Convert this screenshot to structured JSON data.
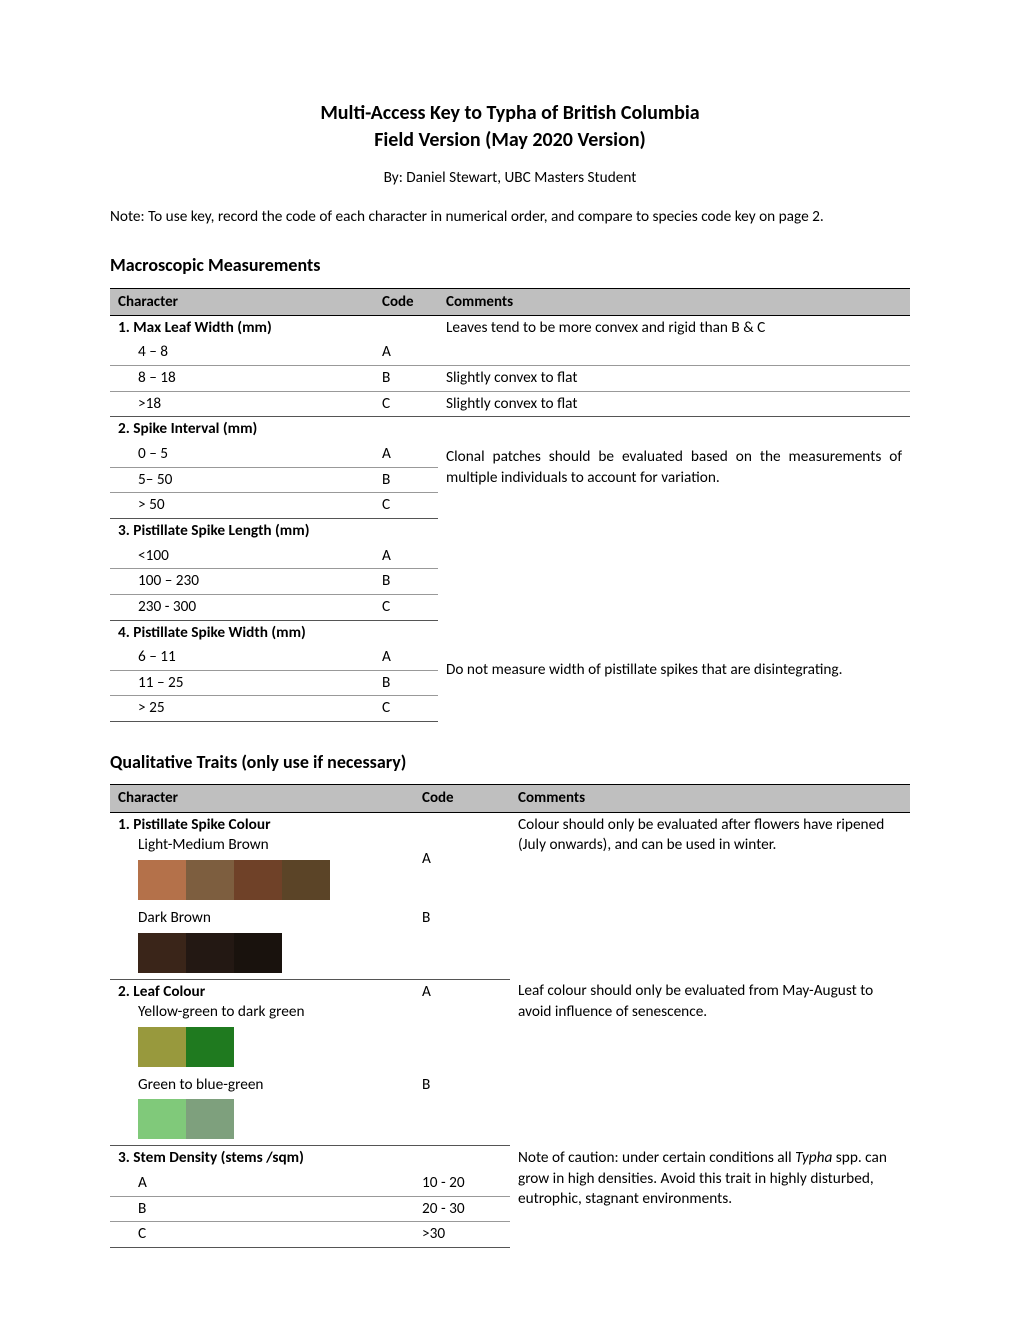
{
  "title1": "Multi-Access Key to Typha of British Columbia",
  "title2": "Field Version (May 2020 Version)",
  "byline": "By: Daniel Stewart, UBC Masters Student",
  "note": "Note: To use key, record the code of each character in numerical order, and compare to species code key on page 2.",
  "section1_head": "Macroscopic Measurements",
  "section2_head": "Qualitative Traits (only use if necessary)",
  "headers": {
    "character": "Character",
    "code": "Code",
    "comments": "Comments"
  },
  "macro": {
    "c1": {
      "label": "1.  Max Leaf Width (mm)",
      "comment_top": "Leaves tend to be more convex and rigid than B & C",
      "r1v": "4 – 8",
      "r1c": "A",
      "r1cm": "",
      "r2v": "8 – 18",
      "r2c": "B",
      "r2cm": "Slightly convex to flat",
      "r3v": ">18",
      "r3c": "C",
      "r3cm": "Slightly convex to flat"
    },
    "c2": {
      "label": "2.  Spike Interval (mm)",
      "comment": "Clonal patches should be evaluated based on the measurements of multiple individuals to account for variation.",
      "r1v": "0 – 5",
      "r1c": "A",
      "r2v": "5– 50",
      "r2c": "B",
      "r3v": "> 50",
      "r3c": "C"
    },
    "c3": {
      "label": "3.  Pistillate Spike Length (mm)",
      "r1v": "<100",
      "r1c": "A",
      "r2v": "100 – 230",
      "r2c": "B",
      "r3v": "230 - 300",
      "r3c": "C"
    },
    "c4": {
      "label": "4.  Pistillate Spike Width (mm)",
      "comment": "Do not measure width of pistillate spikes that are disintegrating.",
      "r1v": "6 – 11",
      "r1c": "A",
      "r2v": "11 – 25",
      "r2c": "B",
      "r3v": "> 25",
      "r3c": "C"
    }
  },
  "qual": {
    "q1": {
      "label": "1.  Pistillate Spike Colour",
      "sub_a": "Light-Medium Brown",
      "code_a": "A",
      "sub_b": "Dark Brown",
      "code_b": "B",
      "comment": "Colour should only be evaluated after flowers have ripened (July onwards), and can be used in winter.",
      "swatches_a": [
        "#b4714a",
        "#7d5e3f",
        "#6f4128",
        "#5b4427"
      ],
      "swatches_b": [
        "#3a2519",
        "#231813",
        "#19120d"
      ]
    },
    "q2": {
      "label": "2.  Leaf Colour",
      "sub_a": "Yellow-green to dark green",
      "code_a": "A",
      "sub_b": "Green to blue-green",
      "code_b": "B",
      "comment": "Leaf colour should only be evaluated from May-August to avoid influence of senescence.",
      "swatches_a": [
        "#98993d",
        "#1f7a1f"
      ],
      "swatches_b": [
        "#80c97a",
        "#7ea07d"
      ]
    },
    "q3": {
      "label": "3.  Stem Density (stems /sqm)",
      "comment_pre": "Note of caution: under certain conditions all ",
      "comment_ital": "Typha",
      "comment_post": " spp. can grow in high densities. Avoid this trait in highly disturbed, eutrophic, stagnant environments.",
      "r1v": "A",
      "r1c": "10 - 20",
      "r2v": "B",
      "r2c": "20 - 30",
      "r3v": "C",
      "r3c": ">30"
    }
  }
}
